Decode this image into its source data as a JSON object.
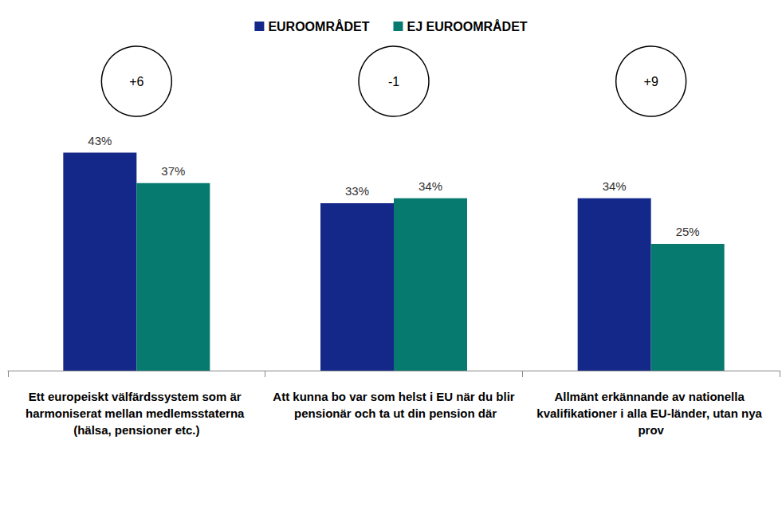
{
  "chart_data": {
    "type": "bar",
    "categories": [
      "Ett europeiskt välfärdssystem som är harmoniserat mellan medlemsstaterna (hälsa, pensioner etc.)",
      "Att kunna bo var som helst i EU när du blir pensionär och ta ut din pension där",
      "Allmänt erkännande av nationella kvalifikationer i alla EU-länder, utan nya prov"
    ],
    "series": [
      {
        "name": "EUROOMRÅDET",
        "color": "#14288a",
        "values": [
          43,
          33,
          34
        ],
        "value_labels": [
          "43%",
          "33%",
          "34%"
        ]
      },
      {
        "name": "EJ EUROOMRÅDET",
        "color": "#077a70",
        "values": [
          37,
          34,
          25
        ],
        "value_labels": [
          "37%",
          "34%",
          "25%"
        ]
      }
    ],
    "annotations": [
      "+6",
      "-1",
      "+9"
    ],
    "ylim": [
      0,
      50
    ],
    "data_labels": true,
    "tick_labels": "x",
    "grid": false,
    "legend": "top"
  }
}
